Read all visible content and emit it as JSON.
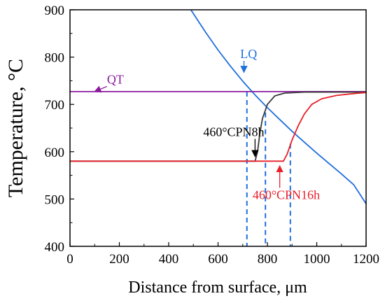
{
  "chart_data": {
    "type": "line",
    "xlabel": "Distance from surface, μm",
    "ylabel": "Temperature, °C",
    "xlim": [
      0,
      1200
    ],
    "ylim": [
      400,
      900
    ],
    "x_ticks": [
      0,
      200,
      400,
      600,
      800,
      1000,
      1200
    ],
    "y_ticks": [
      400,
      500,
      600,
      700,
      800,
      900
    ],
    "grid": false,
    "series": [
      {
        "name": "LQ",
        "color": "#1f6fdc",
        "x": [
          490,
          550,
          600,
          650,
          700,
          750,
          800,
          850,
          900,
          950,
          1000,
          1050,
          1100,
          1150,
          1200
        ],
        "y": [
          900,
          852,
          815,
          781,
          749,
          720,
          693,
          668,
          643,
          620,
          597,
          575,
          553,
          530,
          490
        ]
      },
      {
        "name": "QT",
        "color": "#8b1a9e",
        "x": [
          0,
          1200
        ],
        "y": [
          727,
          727
        ]
      },
      {
        "name": "460°CPN8h",
        "color": "#3a3a3a",
        "x": [
          0,
          750,
          760,
          770,
          780,
          800,
          830,
          870,
          950,
          1200
        ],
        "y": [
          580,
          580,
          600,
          640,
          670,
          700,
          718,
          724,
          726,
          726
        ]
      },
      {
        "name": "460°CPN16h",
        "color": "#e8202a",
        "x": [
          0,
          865,
          880,
          900,
          925,
          950,
          980,
          1020,
          1080,
          1150,
          1200
        ],
        "y": [
          580,
          580,
          595,
          625,
          655,
          680,
          700,
          712,
          719,
          723,
          725
        ]
      }
    ],
    "reference_lines": [
      {
        "x": 717,
        "y_top": 727,
        "color": "#1f6fdc"
      },
      {
        "x": 792,
        "y_top": 683,
        "color": "#1f6fdc"
      },
      {
        "x": 893,
        "y_top": 617,
        "color": "#1f6fdc"
      }
    ],
    "annotations": [
      {
        "text": "LQ",
        "color": "#1f6fdc",
        "at": [
          690,
          798
        ],
        "arrow_to": [
          705,
          768
        ]
      },
      {
        "text": "QT",
        "color": "#8b1a9e",
        "at": [
          150,
          744
        ],
        "arrow_to": [
          100,
          727
        ]
      },
      {
        "text": "460°CPN8h",
        "color": "#000000",
        "at": [
          540,
          633
        ],
        "arrow_to": [
          750,
          590
        ]
      },
      {
        "text": "460°CPN16h",
        "color": "#e8202a",
        "at": [
          740,
          500
        ],
        "arrow_to": [
          850,
          570
        ]
      }
    ]
  }
}
